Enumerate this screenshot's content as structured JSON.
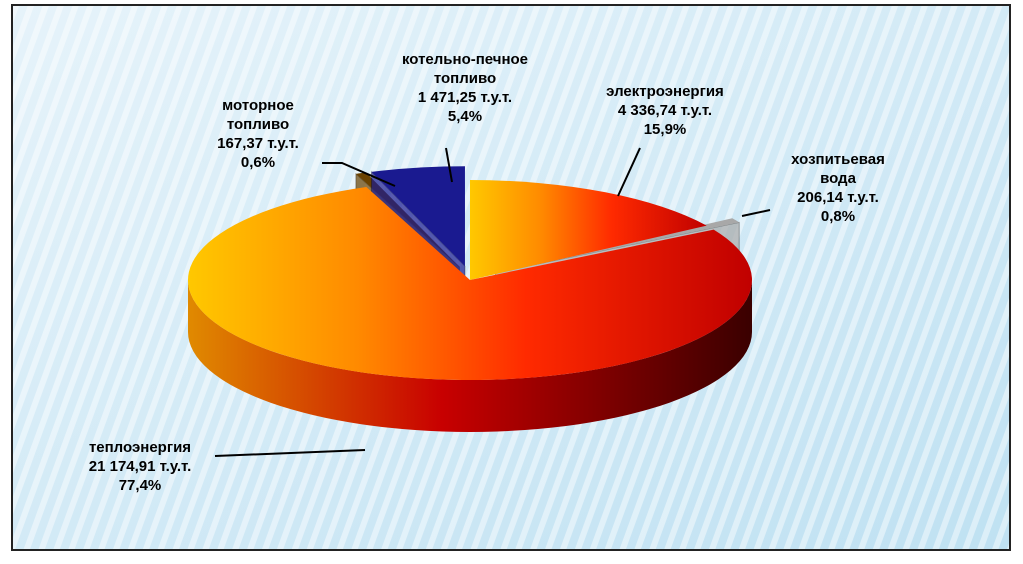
{
  "chart_data": {
    "type": "pie",
    "categories": [
      "электроэнергия",
      "хозпитьевая вода",
      "теплоэнергия",
      "моторное топливо",
      "котельно-печное топливо"
    ],
    "values": [
      4336.74,
      206.14,
      21174.91,
      167.37,
      1471.25
    ],
    "value_labels": [
      "4 336,74 т.у.т.",
      "206,14 т.у.т.",
      "21 174,91 т.у.т.",
      "167,37 т.у.т.",
      "1 471,25 т.у.т."
    ],
    "percents": [
      15.9,
      0.8,
      77.4,
      0.6,
      5.4
    ],
    "percent_labels": [
      "15,9%",
      "0,8%",
      "77,4%",
      "0,6%",
      "5,4%"
    ],
    "colors": [
      "#22c4d4",
      "#a8a8a8",
      "#ff6a00",
      "#6a4200",
      "#1a1a90"
    ]
  }
}
